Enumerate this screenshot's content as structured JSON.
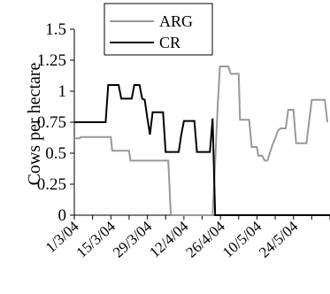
{
  "chart_data": {
    "type": "line",
    "title": "",
    "xlabel": "",
    "ylabel": "Cows per hectare",
    "ylim": [
      0,
      1.5
    ],
    "y_ticks": [
      "0",
      "0.25",
      "0.5",
      "0.75",
      "1",
      "1.25",
      "1.5"
    ],
    "x_tick_labels": [
      "1/3/04",
      "15/3/04",
      "29/3/04",
      "12/4/04",
      "26/4/04",
      "10/5/04",
      "24/5/04"
    ],
    "x_range_days": [
      0,
      98
    ],
    "legend_position": "top",
    "grid": false,
    "series": [
      {
        "name": "ARG",
        "color": "#999999",
        "points": [
          [
            0,
            0.62
          ],
          [
            2,
            0.62
          ],
          [
            2.5,
            0.63
          ],
          [
            14,
            0.63
          ],
          [
            14.5,
            0.52
          ],
          [
            21,
            0.52
          ],
          [
            21.5,
            0.44
          ],
          [
            36,
            0.44
          ],
          [
            37,
            0.0
          ],
          [
            53,
            0.0
          ],
          [
            54,
            0.43
          ],
          [
            55,
            0.9
          ],
          [
            55.8,
            1.2
          ],
          [
            59,
            1.2
          ],
          [
            60,
            1.14
          ],
          [
            63,
            1.14
          ],
          [
            63.5,
            0.77
          ],
          [
            67,
            0.77
          ],
          [
            68,
            0.55
          ],
          [
            70,
            0.55
          ],
          [
            70.5,
            0.48
          ],
          [
            72,
            0.48
          ],
          [
            73,
            0.44
          ],
          [
            74,
            0.44
          ],
          [
            76,
            0.57
          ],
          [
            77,
            0.62
          ],
          [
            78,
            0.68
          ],
          [
            79,
            0.7
          ],
          [
            81,
            0.7
          ],
          [
            82,
            0.85
          ],
          [
            84,
            0.85
          ],
          [
            85,
            0.58
          ],
          [
            89,
            0.58
          ],
          [
            89.5,
            0.67
          ],
          [
            91,
            0.93
          ],
          [
            96,
            0.93
          ],
          [
            97,
            0.75
          ]
        ]
      },
      {
        "name": "CR",
        "color": "#000000",
        "points": [
          [
            0,
            0.75
          ],
          [
            12,
            0.75
          ],
          [
            13,
            1.05
          ],
          [
            17,
            1.05
          ],
          [
            18,
            0.94
          ],
          [
            22,
            0.94
          ],
          [
            23,
            1.05
          ],
          [
            25,
            1.05
          ],
          [
            26,
            0.94
          ],
          [
            27,
            0.93
          ],
          [
            28,
            0.78
          ],
          [
            29,
            0.65
          ],
          [
            30,
            0.83
          ],
          [
            34,
            0.83
          ],
          [
            35,
            0.51
          ],
          [
            40,
            0.51
          ],
          [
            41,
            0.65
          ],
          [
            42,
            0.76
          ],
          [
            46,
            0.76
          ],
          [
            47,
            0.51
          ],
          [
            52,
            0.51
          ],
          [
            53,
            0.78
          ],
          [
            54,
            0.0
          ],
          [
            98,
            0.0
          ]
        ]
      }
    ]
  }
}
